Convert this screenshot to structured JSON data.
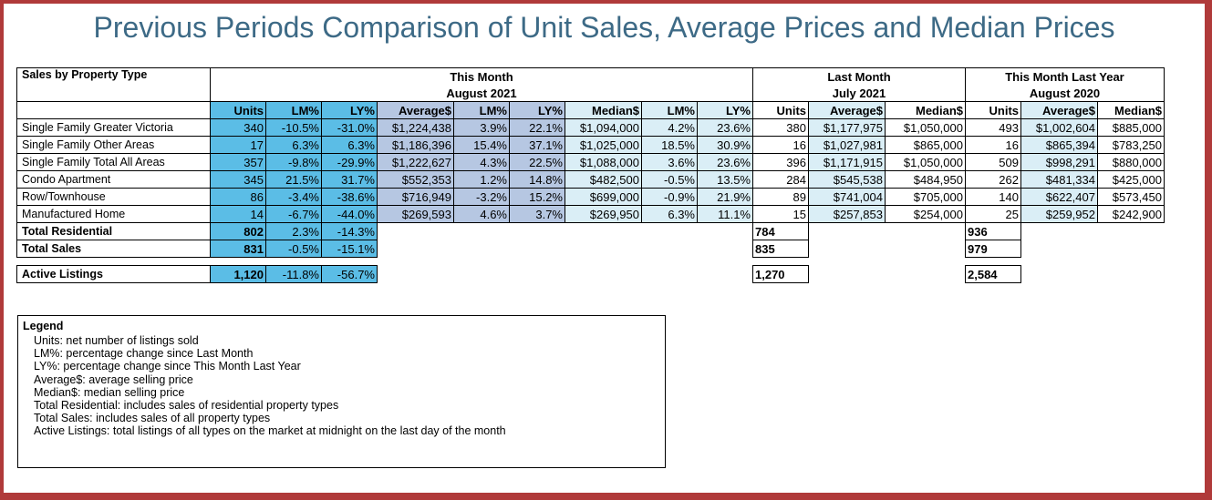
{
  "title": "Previous Periods Comparison of Unit Sales, Average Prices and Median Prices",
  "headers": {
    "row_label": "Sales by Property Type",
    "this_month": "This Month",
    "this_month_period": "August 2021",
    "last_month": "Last Month",
    "last_month_period": "July 2021",
    "last_year": "This Month Last Year",
    "last_year_period": "August 2020",
    "cols": [
      "Units",
      "LM%",
      "LY%",
      "Average$",
      "LM%",
      "LY%",
      "Median$",
      "LM%",
      "LY%",
      "Units",
      "Average$",
      "Median$",
      "Units",
      "Average$",
      "Median$"
    ]
  },
  "rows": [
    {
      "label": "Single Family Greater Victoria",
      "values": [
        "340",
        "-10.5%",
        "-31.0%",
        "$1,224,438",
        "3.9%",
        "22.1%",
        "$1,094,000",
        "4.2%",
        "23.6%",
        "380",
        "$1,177,975",
        "$1,050,000",
        "493",
        "$1,002,604",
        "$885,000"
      ]
    },
    {
      "label": "Single Family Other Areas",
      "values": [
        "17",
        "6.3%",
        "6.3%",
        "$1,186,396",
        "15.4%",
        "37.1%",
        "$1,025,000",
        "18.5%",
        "30.9%",
        "16",
        "$1,027,981",
        "$865,000",
        "16",
        "$865,394",
        "$783,250"
      ]
    },
    {
      "label": "Single Family Total All Areas",
      "values": [
        "357",
        "-9.8%",
        "-29.9%",
        "$1,222,627",
        "4.3%",
        "22.5%",
        "$1,088,000",
        "3.6%",
        "23.6%",
        "396",
        "$1,171,915",
        "$1,050,000",
        "509",
        "$998,291",
        "$880,000"
      ]
    },
    {
      "label": "Condo Apartment",
      "values": [
        "345",
        "21.5%",
        "31.7%",
        "$552,353",
        "1.2%",
        "14.8%",
        "$482,500",
        "-0.5%",
        "13.5%",
        "284",
        "$545,538",
        "$484,950",
        "262",
        "$481,334",
        "$425,000"
      ]
    },
    {
      "label": "Row/Townhouse",
      "values": [
        "86",
        "-3.4%",
        "-38.6%",
        "$716,949",
        "-3.2%",
        "15.2%",
        "$699,000",
        "-0.9%",
        "21.9%",
        "89",
        "$741,004",
        "$705,000",
        "140",
        "$622,407",
        "$573,450"
      ]
    },
    {
      "label": "Manufactured Home",
      "values": [
        "14",
        "-6.7%",
        "-44.0%",
        "$269,593",
        "4.6%",
        "3.7%",
        "$269,950",
        "6.3%",
        "11.1%",
        "15",
        "$257,853",
        "$254,000",
        "25",
        "$259,952",
        "$242,900"
      ]
    }
  ],
  "total_residential": {
    "label": "Total Residential",
    "units": "802",
    "lm": "2.3%",
    "ly": "-14.3%",
    "last_month_units": "784",
    "last_year_units": "936"
  },
  "total_sales": {
    "label": "Total Sales",
    "units": "831",
    "lm": "-0.5%",
    "ly": "-15.1%",
    "last_month_units": "835",
    "last_year_units": "979"
  },
  "active_listings": {
    "label": "Active Listings",
    "units": "1,120",
    "lm": "-11.8%",
    "ly": "-56.7%",
    "last_month_units": "1,270",
    "last_year_units": "2,584"
  },
  "legend": {
    "heading": "Legend",
    "items": [
      "Units: net number of listings sold",
      "LM%: percentage change since Last Month",
      "LY%: percentage change since This Month Last Year",
      "Average$: average selling price",
      "Median$: median selling price",
      "Total Residential: includes sales of residential property types",
      "Total Sales: includes sales of all property types",
      "Active Listings: total listings of all types on the market at midnight on the last day of the month"
    ]
  }
}
